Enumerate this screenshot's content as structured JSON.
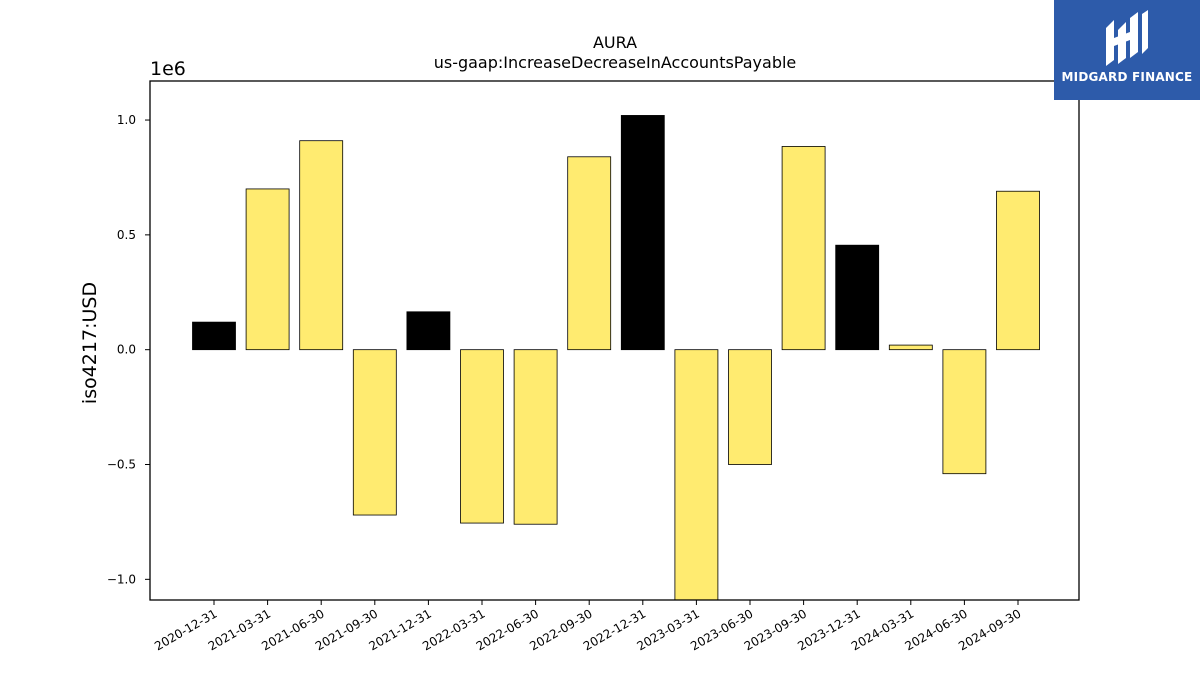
{
  "logo": {
    "text": "MIDGARD FINANCE",
    "bg_color": "#2d5baa"
  },
  "chart_data": {
    "type": "bar",
    "title": "AURA",
    "subtitle": "us-gaap:IncreaseDecreaseInAccountsPayable",
    "xlabel": "",
    "ylabel": "iso4217:USD",
    "offset_text": "1e6",
    "ylim": [
      -1.09,
      1.17
    ],
    "yticks": [
      -1.0,
      -0.5,
      0.0,
      0.5,
      1.0
    ],
    "ytick_labels": [
      "−1.0",
      "−0.5",
      "0.0",
      "0.5",
      "1.0"
    ],
    "categories": [
      "2020-12-31",
      "2021-03-31",
      "2021-06-30",
      "2021-09-30",
      "2021-12-31",
      "2022-03-31",
      "2022-06-30",
      "2022-09-30",
      "2022-12-31",
      "2023-03-31",
      "2023-06-30",
      "2023-09-30",
      "2023-12-31",
      "2024-03-31",
      "2024-06-30",
      "2024-09-30"
    ],
    "values": [
      0.12,
      0.7,
      0.91,
      -0.72,
      0.165,
      -0.755,
      -0.76,
      0.84,
      1.02,
      -1.12,
      -0.5,
      0.885,
      0.455,
      0.02,
      -0.54,
      0.69
    ],
    "bar_colors": [
      "#000000",
      "#ffeb70",
      "#ffeb70",
      "#ffeb70",
      "#000000",
      "#ffeb70",
      "#ffeb70",
      "#ffeb70",
      "#000000",
      "#ffeb70",
      "#ffeb70",
      "#ffeb70",
      "#000000",
      "#ffeb70",
      "#ffeb70",
      "#ffeb70"
    ],
    "grid": false
  }
}
